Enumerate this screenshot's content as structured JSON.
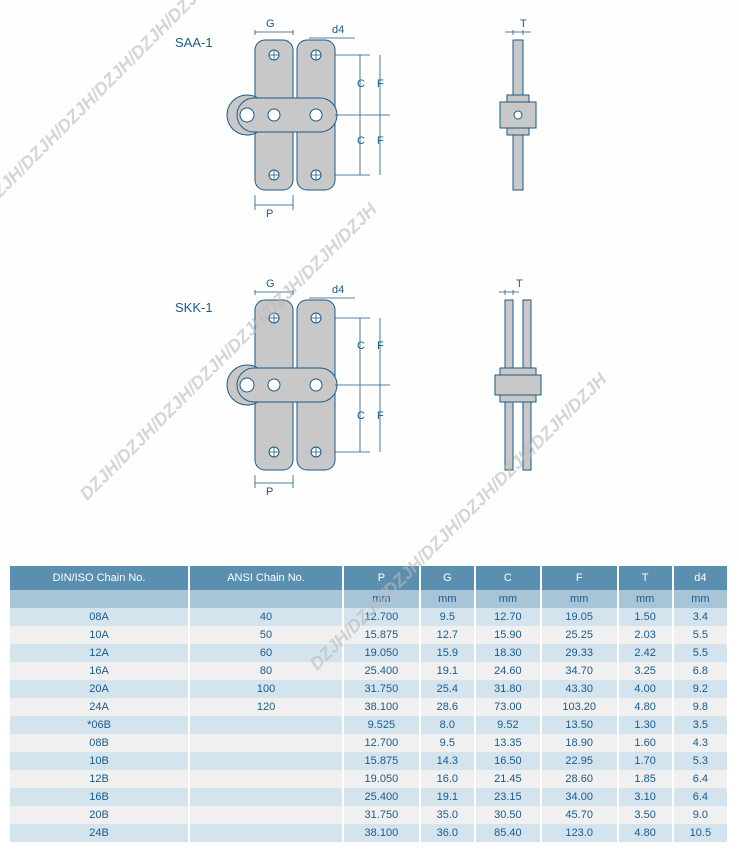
{
  "diagrams": {
    "top": {
      "label": "SAA-1",
      "dims": [
        "G",
        "d4",
        "C",
        "F",
        "C",
        "F",
        "P",
        "T"
      ]
    },
    "bottom": {
      "label": "SKK-1",
      "dims": [
        "G",
        "d4",
        "C",
        "F",
        "C",
        "F",
        "P",
        "T"
      ]
    }
  },
  "table": {
    "columns": [
      "DIN/ISO Chain No.",
      "ANSI Chain No.",
      "P",
      "G",
      "C",
      "F",
      "T",
      "d4"
    ],
    "unit_row": [
      "",
      "",
      "mm",
      "mm",
      "mm",
      "mm",
      "mm",
      "mm"
    ],
    "rows": [
      [
        "08A",
        "40",
        "12.700",
        "9.5",
        "12.70",
        "19.05",
        "1.50",
        "3.4"
      ],
      [
        "10A",
        "50",
        "15.875",
        "12.7",
        "15.90",
        "25.25",
        "2.03",
        "5.5"
      ],
      [
        "12A",
        "60",
        "19.050",
        "15.9",
        "18.30",
        "29.33",
        "2.42",
        "5.5"
      ],
      [
        "16A",
        "80",
        "25.400",
        "19.1",
        "24.60",
        "34.70",
        "3.25",
        "6.8"
      ],
      [
        "20A",
        "100",
        "31.750",
        "25.4",
        "31.80",
        "43.30",
        "4.00",
        "9.2"
      ],
      [
        "24A",
        "120",
        "38.100",
        "28.6",
        "73.00",
        "103.20",
        "4.80",
        "9.8"
      ],
      [
        "*06B",
        "",
        "9.525",
        "8.0",
        "9.52",
        "13.50",
        "1.30",
        "3.5"
      ],
      [
        "08B",
        "",
        "12.700",
        "9.5",
        "13.35",
        "18.90",
        "1.60",
        "4.3"
      ],
      [
        "10B",
        "",
        "15.875",
        "14.3",
        "16.50",
        "22.95",
        "1.70",
        "5.3"
      ],
      [
        "12B",
        "",
        "19.050",
        "16.0",
        "21.45",
        "28.60",
        "1.85",
        "6.4"
      ],
      [
        "16B",
        "",
        "25.400",
        "19.1",
        "23.15",
        "34.00",
        "3.10",
        "6.4"
      ],
      [
        "20B",
        "",
        "31.750",
        "35.0",
        "30.50",
        "45.70",
        "3.50",
        "9.0"
      ],
      [
        "24B",
        "",
        "38.100",
        "36.0",
        "85.40",
        "123.0",
        "4.80",
        "10.5"
      ]
    ]
  },
  "watermark_text": "DZJH/DZJH/DZJH/DZJH/DZJH/DZJH/DZJH/DZJH",
  "colors": {
    "header_bg": "#5a8fb0",
    "unit_bg": "#a8c5d8",
    "row_odd": "#d4e4ef",
    "row_even": "#f0f0f0",
    "text": "#1a5a8a",
    "chain_fill": "#c8c8c8",
    "chain_stroke": "#1a5a8a",
    "dim_line": "#1a5a8a"
  }
}
